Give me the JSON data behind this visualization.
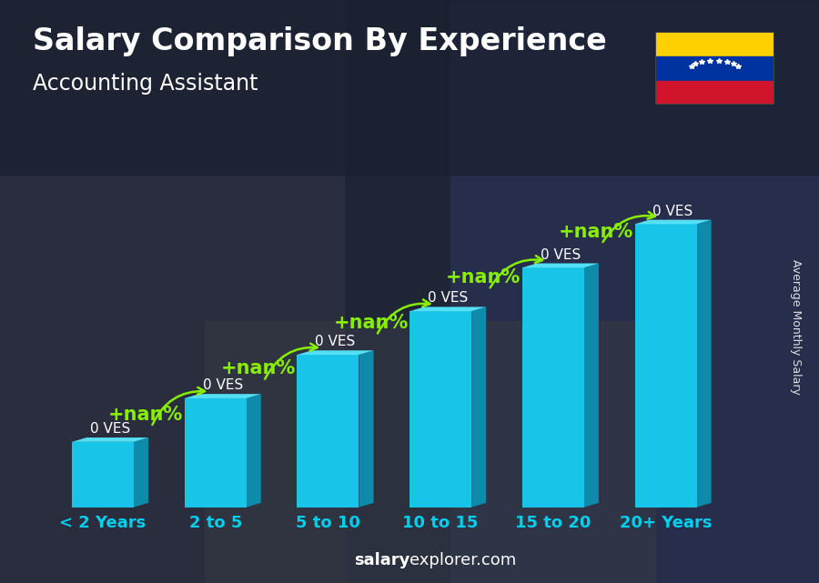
{
  "title": "Salary Comparison By Experience",
  "subtitle": "Accounting Assistant",
  "ylabel": "Average Monthly Salary",
  "footer_bold": "salary",
  "footer_normal": "explorer.com",
  "categories": [
    "< 2 Years",
    "2 to 5",
    "5 to 10",
    "10 to 15",
    "15 to 20",
    "20+ Years"
  ],
  "values": [
    1.5,
    2.5,
    3.5,
    4.5,
    5.5,
    6.5
  ],
  "bar_top_labels": [
    "0 VES",
    "0 VES",
    "0 VES",
    "0 VES",
    "0 VES",
    "0 VES"
  ],
  "pct_labels": [
    "+nan%",
    "+nan%",
    "+nan%",
    "+nan%",
    "+nan%"
  ],
  "bar_color_face": "#18c5e8",
  "bar_color_top": "#55dff5",
  "bar_color_side": "#0e8baa",
  "bg_dark": "#1e2535",
  "bg_mid": "#2a3348",
  "title_color": "#ffffff",
  "subtitle_color": "#ffffff",
  "label_color": "#ffffff",
  "xtick_color": "#00cfee",
  "pct_color": "#88ee00",
  "footer_color": "#ffffff",
  "bar_width": 0.55,
  "title_fontsize": 24,
  "subtitle_fontsize": 17,
  "tick_fontsize": 13,
  "ylabel_fontsize": 9,
  "footer_fontsize": 13,
  "ves_fontsize": 11,
  "pct_fontsize": 15
}
